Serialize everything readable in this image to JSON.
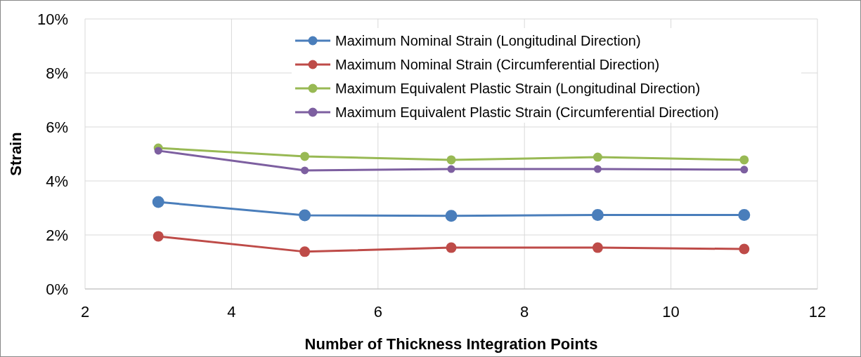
{
  "chart_data": {
    "type": "line",
    "xlabel": "Number of Thickness Integration Points",
    "ylabel": "Strain",
    "x": [
      3,
      5,
      7,
      9,
      11
    ],
    "series": [
      {
        "name": "Maximum Nominal Strain (Longitudinal Direction)",
        "color": "#4a7ebb",
        "values": [
          3.22,
          2.73,
          2.71,
          2.74,
          2.74
        ]
      },
      {
        "name": "Maximum Nominal Strain (Circumferential Direction)",
        "color": "#be4b48",
        "values": [
          1.95,
          1.38,
          1.53,
          1.53,
          1.48
        ]
      },
      {
        "name": "Maximum Equivalent Plastic Strain (Longitudinal Direction)",
        "color": "#98b954",
        "values": [
          5.22,
          4.91,
          4.78,
          4.88,
          4.78
        ]
      },
      {
        "name": "Maximum Equivalent Plastic Strain (Circumferential Direction)",
        "color": "#7d5fa0",
        "values": [
          5.12,
          4.39,
          4.44,
          4.44,
          4.42
        ]
      }
    ],
    "xlim": [
      2,
      12
    ],
    "xticks": [
      2,
      4,
      6,
      8,
      10,
      12
    ],
    "ylim": [
      0,
      10
    ],
    "yticks": [
      {
        "value": 0,
        "label": "0%"
      },
      {
        "value": 2,
        "label": "2%"
      },
      {
        "value": 4,
        "label": "4%"
      },
      {
        "value": 6,
        "label": "6%"
      },
      {
        "value": 8,
        "label": "8%"
      },
      {
        "value": 10,
        "label": "10%"
      }
    ],
    "grid": true,
    "legend": "top right",
    "marker": "circle",
    "line_style": "solid"
  }
}
